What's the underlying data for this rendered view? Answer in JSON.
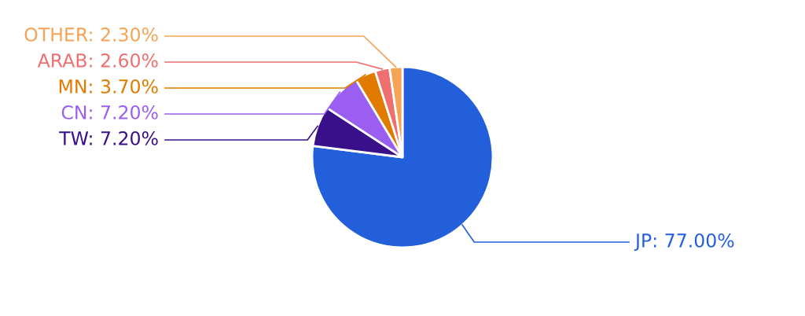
{
  "chart_data": {
    "type": "pie",
    "categories": [
      "JP",
      "TW",
      "CN",
      "MN",
      "ARAB",
      "OTHER"
    ],
    "values": [
      77.0,
      7.2,
      7.2,
      3.7,
      2.6,
      2.3
    ],
    "value_labels": [
      "77.00%",
      "7.20%",
      "7.20%",
      "3.70%",
      "2.60%",
      "2.30%"
    ],
    "colors": [
      "#235fdb",
      "#3a108a",
      "#9a5ff0",
      "#e07b00",
      "#ef6f6f",
      "#f5a354"
    ],
    "legend": false
  }
}
